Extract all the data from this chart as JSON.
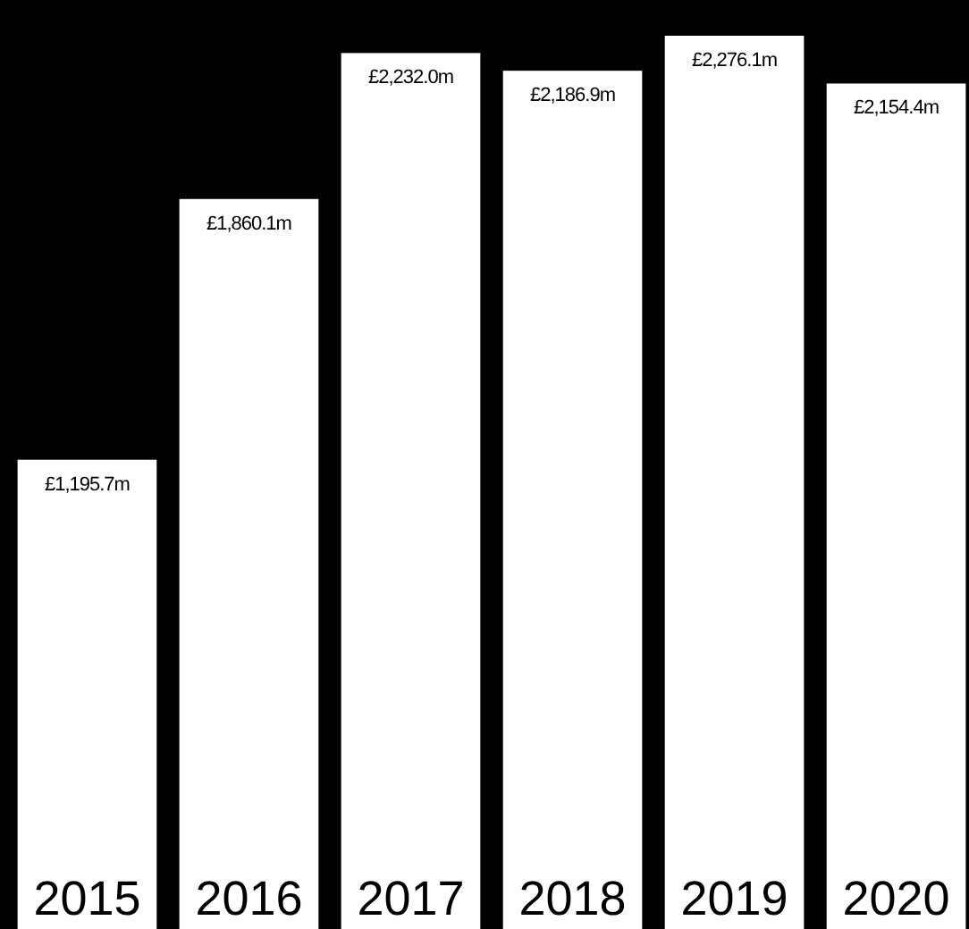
{
  "chart_data": {
    "type": "bar",
    "categories": [
      "2015",
      "2016",
      "2017",
      "2018",
      "2019",
      "2020"
    ],
    "values": [
      1195.7,
      1860.1,
      2232.0,
      2186.9,
      2276.1,
      2154.4
    ],
    "value_labels": [
      "£1,195.7m",
      "£1,860.1m",
      "£2,232.0m",
      "£2,186.9m",
      "£2,276.1m",
      "£2,154.4m"
    ],
    "color": "#ffffff"
  }
}
